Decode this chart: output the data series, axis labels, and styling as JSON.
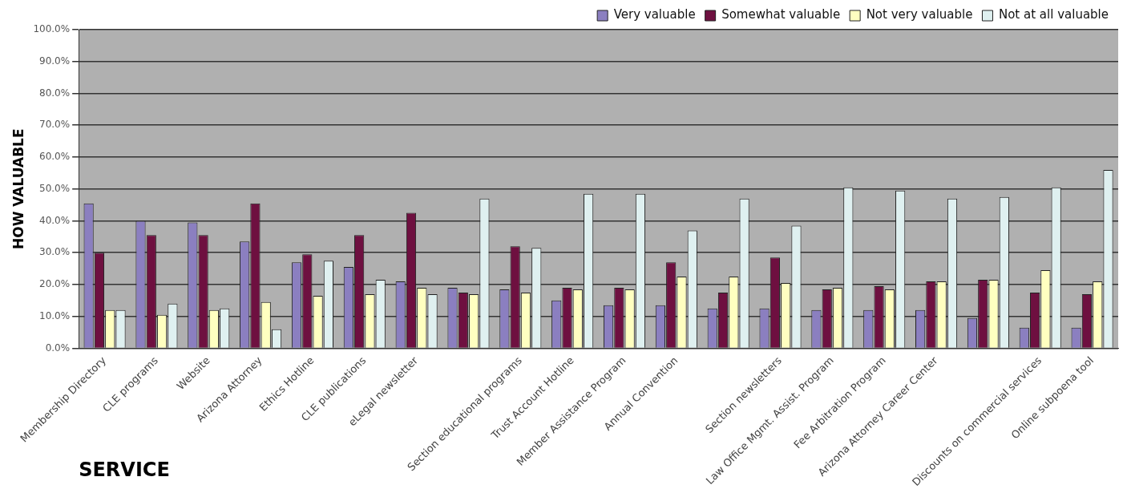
{
  "chart_data": {
    "type": "bar",
    "xlabel": "SERVICE",
    "ylabel": "HOW VALUABLE",
    "categories": [
      "Membership Directory",
      "CLE programs",
      "Website",
      "Arizona Attorney",
      "Ethics Hotline",
      "CLE publications",
      "eLegal newsletter",
      null,
      "Section educational programs",
      "Trust Account Hotline",
      "Member Assistance Program",
      "Annual Convention",
      null,
      "Section newsletters",
      "Law Office Mgmt. Assist. Program",
      "Fee Arbitration Program",
      "Arizona Attorney Career Center",
      null,
      "Discounts on commercial services",
      "Online subpoena tool"
    ],
    "series": [
      {
        "name": "Very valuable",
        "color": "#8b7fc0",
        "values": [
          45.5,
          40,
          39.5,
          33.5,
          27,
          25.5,
          21,
          19,
          18.5,
          15,
          13.5,
          13.5,
          12.5,
          12.5,
          12,
          12,
          12,
          9.5,
          6.5,
          6.5
        ]
      },
      {
        "name": "Somewhat valuable",
        "color": "#6e1040",
        "values": [
          30,
          35.5,
          35.5,
          45.5,
          29.5,
          35.5,
          42.5,
          17.5,
          32,
          19,
          19,
          27,
          17.5,
          28.5,
          18.5,
          19.5,
          21,
          21.5,
          17.5,
          17
        ]
      },
      {
        "name": "Not very valuable",
        "color": "#ffffc0",
        "values": [
          12,
          10.5,
          12,
          14.5,
          16.5,
          17,
          19,
          17,
          17.5,
          18.5,
          18.5,
          22.5,
          22.5,
          20.5,
          19,
          18.5,
          21,
          21.5,
          24.5,
          21
        ]
      },
      {
        "name": "Not at all valuable",
        "color": "#dff0f0",
        "values": [
          12,
          14,
          12.5,
          6,
          27.5,
          21.5,
          17,
          47,
          31.5,
          48.5,
          48.5,
          37,
          47,
          38.5,
          50.5,
          49.5,
          47,
          47.5,
          50.5,
          56
        ]
      }
    ],
    "ylim": [
      0,
      100
    ],
    "yticks": [
      {
        "value": 0,
        "label": "0.0%"
      },
      {
        "value": 10,
        "label": "10.0%"
      },
      {
        "value": 20,
        "label": "20.0%"
      },
      {
        "value": 30,
        "label": "30.0%"
      },
      {
        "value": 40,
        "label": "40.0%"
      },
      {
        "value": 50,
        "label": "50.0%"
      },
      {
        "value": 60,
        "label": "60.0%"
      },
      {
        "value": 70,
        "label": "70.0%"
      },
      {
        "value": 80,
        "label": "80.0%"
      },
      {
        "value": 90,
        "label": "90.0%"
      },
      {
        "value": 100,
        "label": "100.0%"
      }
    ],
    "grid": "y",
    "legend": "top right"
  }
}
